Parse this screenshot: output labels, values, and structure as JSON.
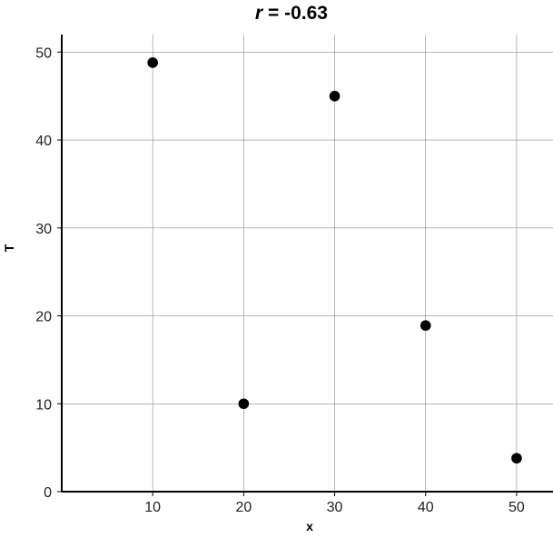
{
  "chart_data": {
    "type": "scatter",
    "title": {
      "variable": "r",
      "rest": " = -0.63"
    },
    "xlabel": "x",
    "ylabel": "T",
    "xlim": [
      0,
      54
    ],
    "ylim": [
      0,
      52
    ],
    "xticks": [
      10,
      20,
      30,
      40,
      50
    ],
    "yticks": [
      0,
      10,
      20,
      30,
      40,
      50
    ],
    "grid": true,
    "marker_color": "#000000",
    "points": [
      {
        "x": 10,
        "y": 48.8
      },
      {
        "x": 20,
        "y": 10.0
      },
      {
        "x": 30,
        "y": 45.0
      },
      {
        "x": 40,
        "y": 18.9
      },
      {
        "x": 50,
        "y": 3.8
      }
    ]
  }
}
